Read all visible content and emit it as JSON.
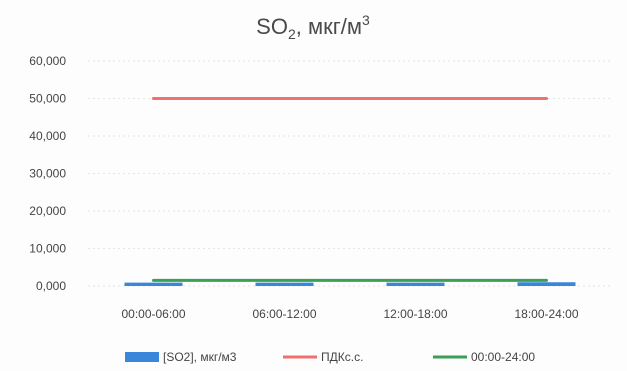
{
  "chart_data": {
    "type": "bar",
    "title": {
      "main": "SO",
      "sub": "2",
      "suffix": ", мкг/м",
      "sup": "3"
    },
    "categories": [
      "00:00-06:00",
      "06:00-12:00",
      "12:00-18:00",
      "18:00-24:00"
    ],
    "ylim": [
      0,
      60
    ],
    "yticks": [
      {
        "value": 0,
        "label": "0,000"
      },
      {
        "value": 10,
        "label": "10,000"
      },
      {
        "value": 20,
        "label": "20,000"
      },
      {
        "value": 30,
        "label": "30,000"
      },
      {
        "value": 40,
        "label": "40,000"
      },
      {
        "value": 50,
        "label": "50,000"
      },
      {
        "value": 60,
        "label": "60,000"
      }
    ],
    "grid": true,
    "legend_position": "bottom",
    "series": [
      {
        "name": "[SO2], мкг/м3",
        "kind": "bar",
        "color": "#3a86d8",
        "values": [
          0.9,
          0.9,
          0.9,
          1.0
        ]
      },
      {
        "name": "ПДКс.с.",
        "kind": "line",
        "color": "#f07070",
        "values": [
          50,
          50,
          50,
          50
        ]
      },
      {
        "name": "00:00-24:00",
        "kind": "line",
        "color": "#3aa055",
        "values": [
          1.5,
          1.5,
          1.5,
          1.5
        ]
      }
    ]
  }
}
